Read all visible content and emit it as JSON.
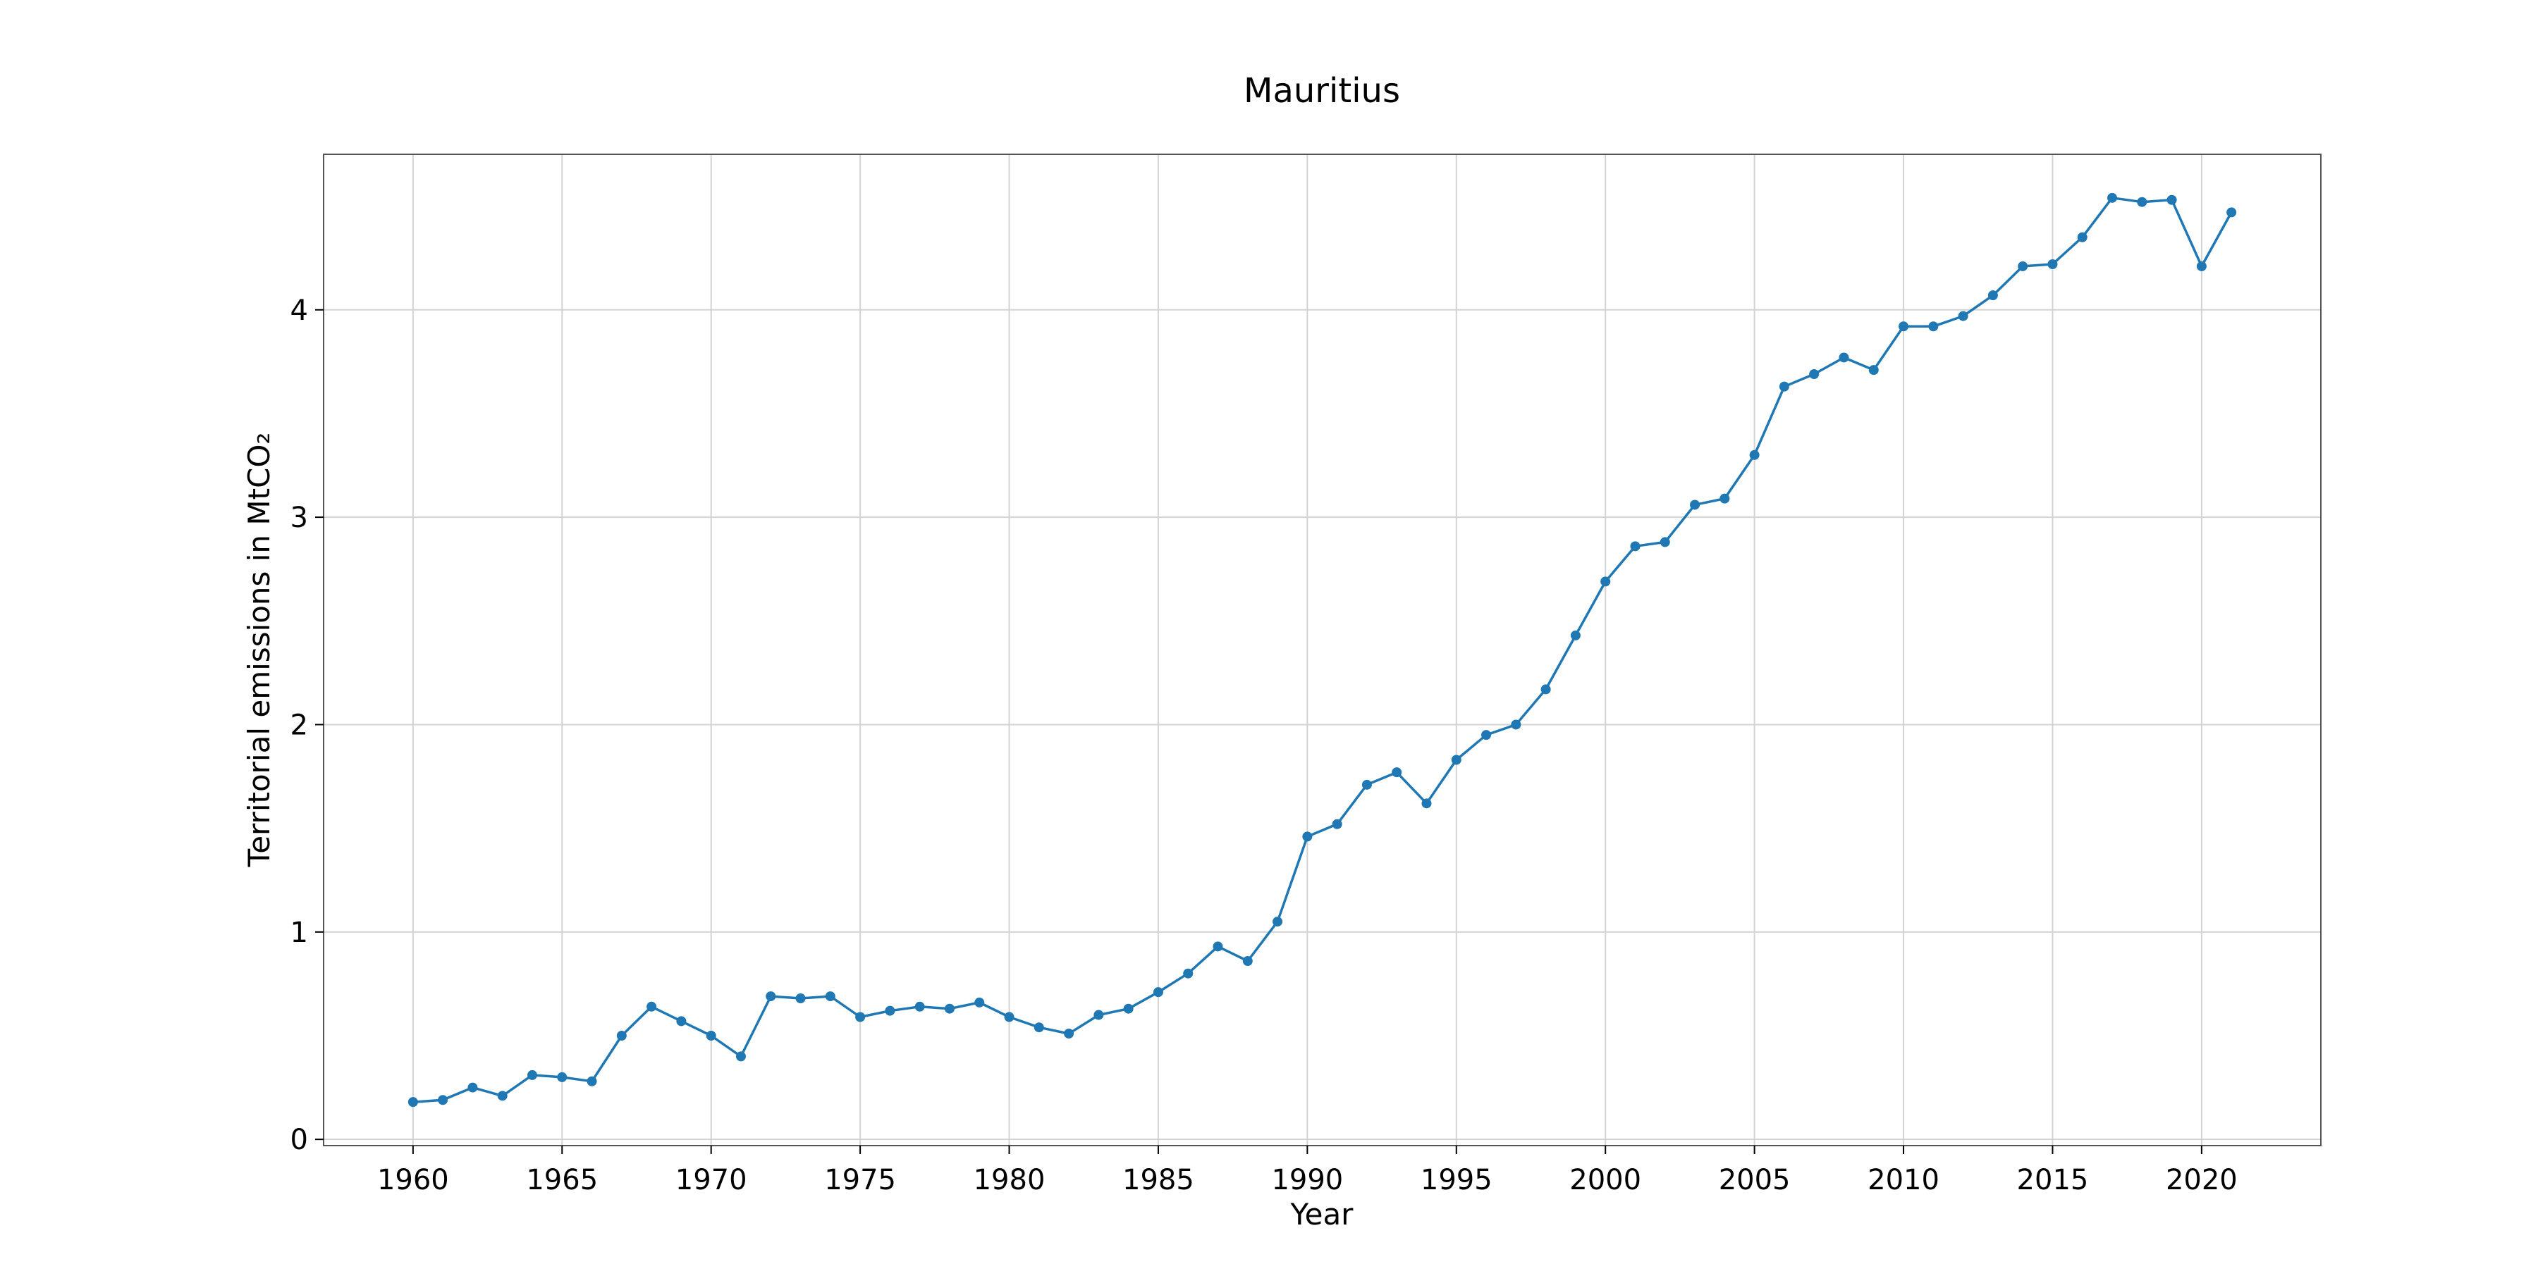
{
  "chart_data": {
    "type": "line",
    "title": "Mauritius",
    "xlabel": "Year",
    "ylabel": "Territorial emissions in MtCO₂",
    "xlim": [
      1957,
      2024
    ],
    "ylim": [
      -0.03,
      4.75
    ],
    "xticks": [
      1960,
      1965,
      1970,
      1975,
      1980,
      1985,
      1990,
      1995,
      2000,
      2005,
      2010,
      2015,
      2020
    ],
    "yticks": [
      0,
      1,
      2,
      3,
      4
    ],
    "grid": true,
    "color": "#1f77b4",
    "series": [
      {
        "x": [
          1960,
          1961,
          1962,
          1963,
          1964,
          1965,
          1966,
          1967,
          1968,
          1969,
          1970,
          1971,
          1972,
          1973,
          1974,
          1975,
          1976,
          1977,
          1978,
          1979,
          1980,
          1981,
          1982,
          1983,
          1984,
          1985,
          1986,
          1987,
          1988,
          1989,
          1990,
          1991,
          1992,
          1993,
          1994,
          1995,
          1996,
          1997,
          1998,
          1999,
          2000,
          2001,
          2002,
          2003,
          2004,
          2005,
          2006,
          2007,
          2008,
          2009,
          2010,
          2011,
          2012,
          2013,
          2014,
          2015,
          2016,
          2017,
          2018,
          2019,
          2020,
          2021
        ],
        "y": [
          0.18,
          0.19,
          0.25,
          0.21,
          0.31,
          0.3,
          0.28,
          0.5,
          0.64,
          0.57,
          0.5,
          0.4,
          0.69,
          0.68,
          0.69,
          0.59,
          0.62,
          0.64,
          0.63,
          0.66,
          0.59,
          0.54,
          0.51,
          0.6,
          0.63,
          0.71,
          0.8,
          0.93,
          0.86,
          1.05,
          1.46,
          1.52,
          1.71,
          1.77,
          1.62,
          1.83,
          1.95,
          2.0,
          2.17,
          2.43,
          2.69,
          2.86,
          2.88,
          3.06,
          3.09,
          3.3,
          3.63,
          3.69,
          3.77,
          3.71,
          3.92,
          3.92,
          3.97,
          4.07,
          4.21,
          4.22,
          4.35,
          4.54,
          4.52,
          4.53,
          4.21,
          4.47
        ]
      }
    ]
  }
}
